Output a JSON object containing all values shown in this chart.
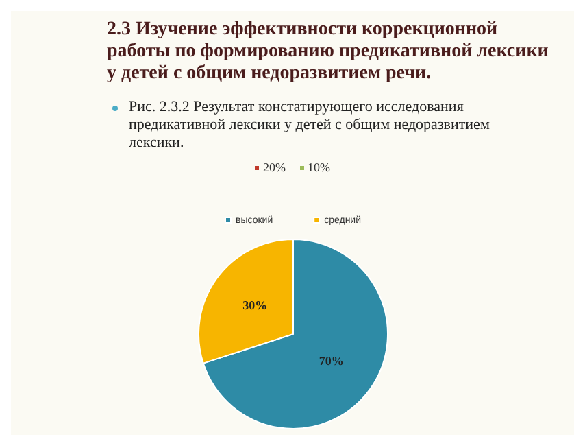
{
  "chart_data": {
    "type": "pie",
    "title": "2.3 Изучение эффективности коррекционной работы по формированию предикативной лексики у детей с общим недоразвитием речи.",
    "subtitle": "Рис. 2.3.2 Результат констатирующего исследования предикативной лексики у детей с общим недоразвитием лексики.",
    "categories": [
      "высокий",
      "средний"
    ],
    "values": [
      70,
      30
    ],
    "colors": [
      "#2e8ba6",
      "#f7b500"
    ],
    "value_labels": [
      "70%",
      "30%"
    ],
    "annotations": [
      "20%",
      "10%"
    ],
    "legend": "top"
  }
}
